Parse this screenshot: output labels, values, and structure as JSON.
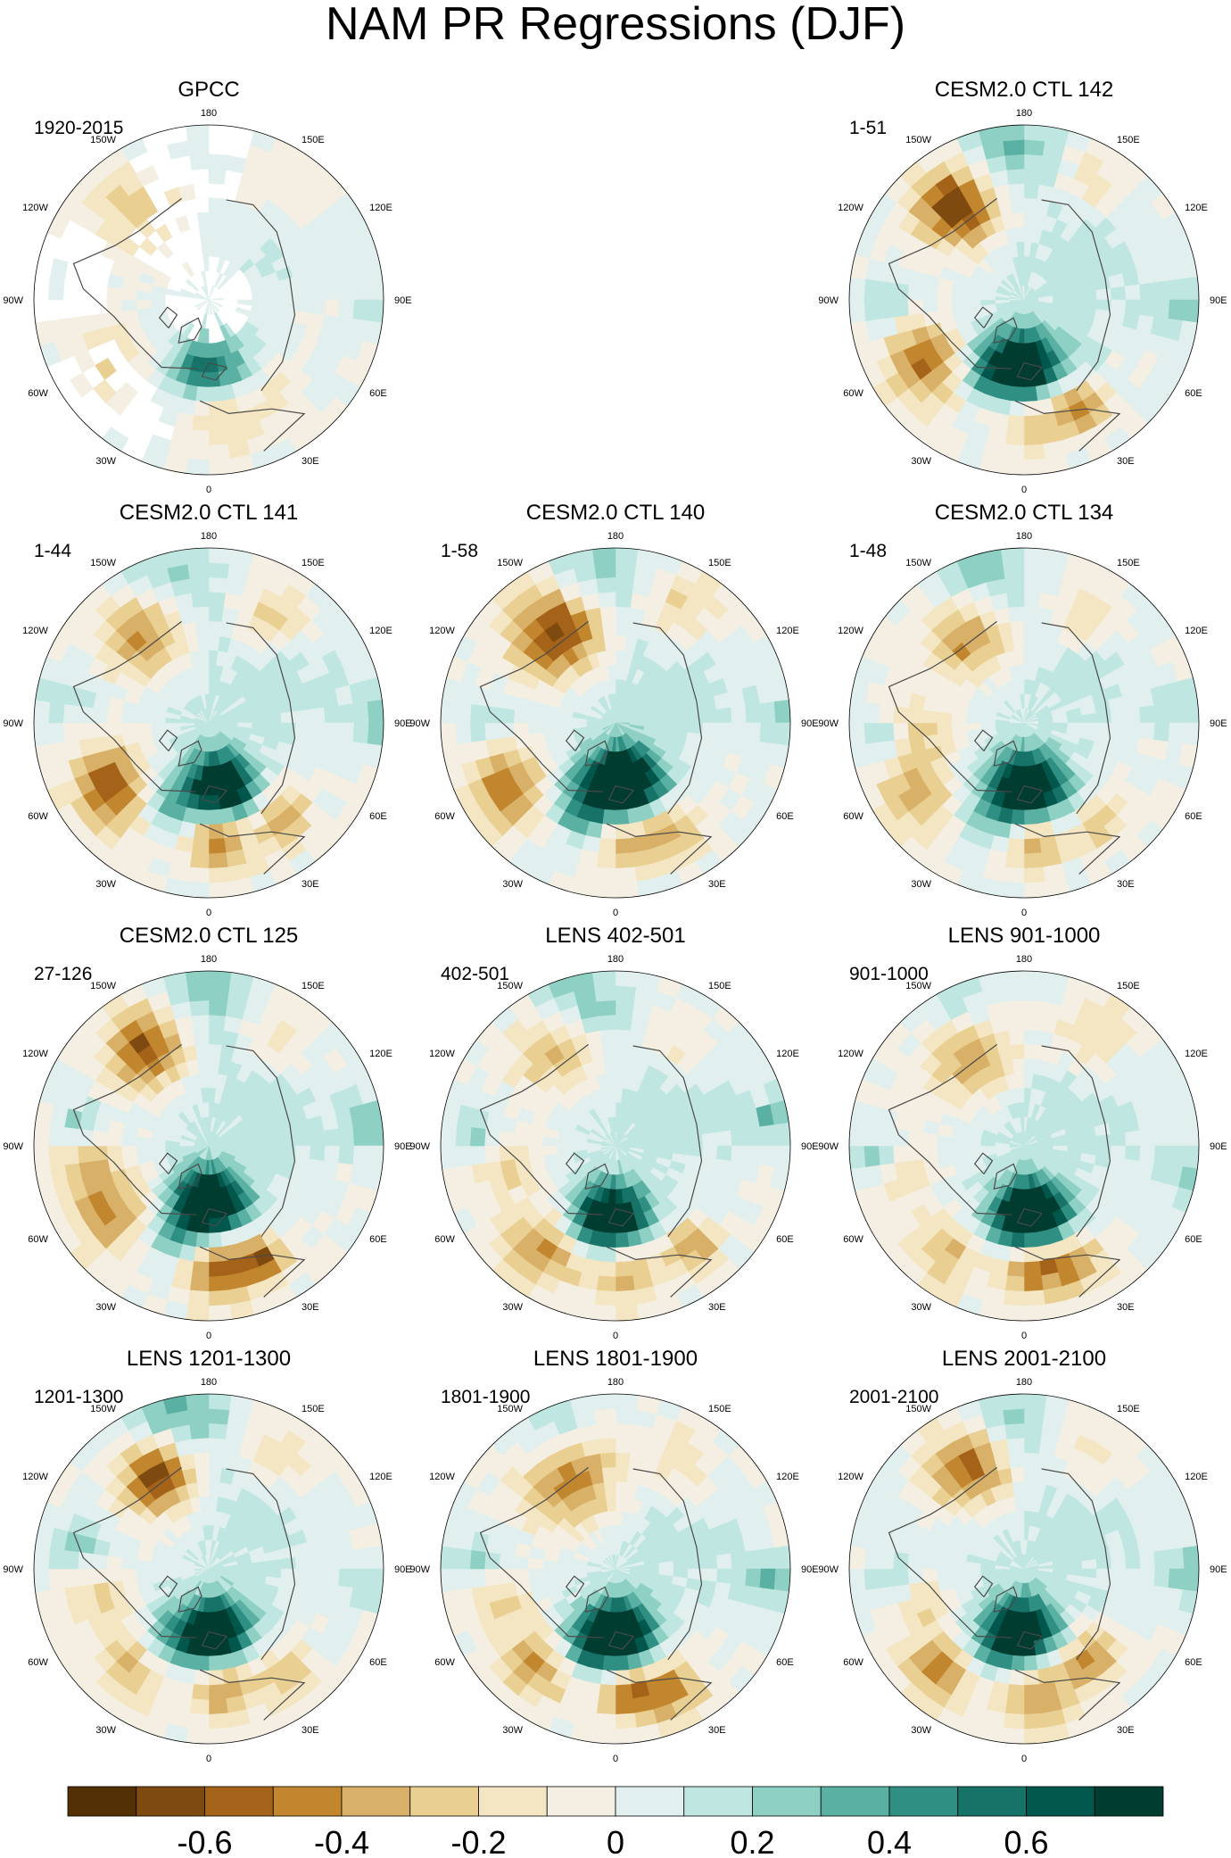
{
  "chart_data": {
    "type": "polar-contour-map-panels",
    "title": "NAM PR Regressions (DJF)",
    "projection": "north-polar-stereographic",
    "longitude_labels": [
      "180",
      "150E",
      "120E",
      "90E",
      "60E",
      "30E",
      "0",
      "30W",
      "60W",
      "90W",
      "120W",
      "150W"
    ],
    "panels": [
      {
        "title": "GPCC",
        "years": "1920-2015",
        "row": 0,
        "col": 0,
        "style": "obs"
      },
      {
        "title": "CESM2.0 CTL 142",
        "years": "1-51",
        "row": 0,
        "col": 2,
        "style": "model"
      },
      {
        "title": "CESM2.0 CTL 141",
        "years": "1-44",
        "row": 1,
        "col": 0,
        "style": "model"
      },
      {
        "title": "CESM2.0 CTL 140",
        "years": "1-58",
        "row": 1,
        "col": 1,
        "style": "model"
      },
      {
        "title": "CESM2.0 CTL 134",
        "years": "1-48",
        "row": 1,
        "col": 2,
        "style": "model"
      },
      {
        "title": "CESM2.0 CTL 125",
        "years": "27-126",
        "row": 2,
        "col": 0,
        "style": "model"
      },
      {
        "title": "LENS 402-501",
        "years": "402-501",
        "row": 2,
        "col": 1,
        "style": "model"
      },
      {
        "title": "LENS 901-1000",
        "years": "901-1000",
        "row": 2,
        "col": 2,
        "style": "model"
      },
      {
        "title": "LENS 1201-1300",
        "years": "1201-1300",
        "row": 3,
        "col": 0,
        "style": "model"
      },
      {
        "title": "LENS 1801-1900",
        "years": "1801-1900",
        "row": 3,
        "col": 1,
        "style": "model"
      },
      {
        "title": "LENS 2001-2100",
        "years": "2001-2100",
        "row": 3,
        "col": 2,
        "style": "model"
      }
    ],
    "colorbar": {
      "min": -0.8,
      "max": 0.8,
      "step": 0.1,
      "tick_labels": [
        "-0.6",
        "-0.4",
        "-0.2",
        "0",
        "0.2",
        "0.4",
        "0.6"
      ],
      "tick_values": [
        -0.6,
        -0.4,
        -0.2,
        0,
        0.2,
        0.4,
        0.6
      ],
      "colors": [
        "#543005",
        "#7f4a0f",
        "#a56319",
        "#c2862f",
        "#d9b068",
        "#e9cf92",
        "#f4e6c3",
        "#f4efe2",
        "#e1f0ee",
        "#bfe6e0",
        "#8fd0c4",
        "#5ab0a2",
        "#2f8f83",
        "#177268",
        "#01574c",
        "#003c30"
      ]
    }
  },
  "colors": {
    "coast": "#4a4a4a",
    "map_border": "#000000",
    "missing": "#ffffff"
  }
}
